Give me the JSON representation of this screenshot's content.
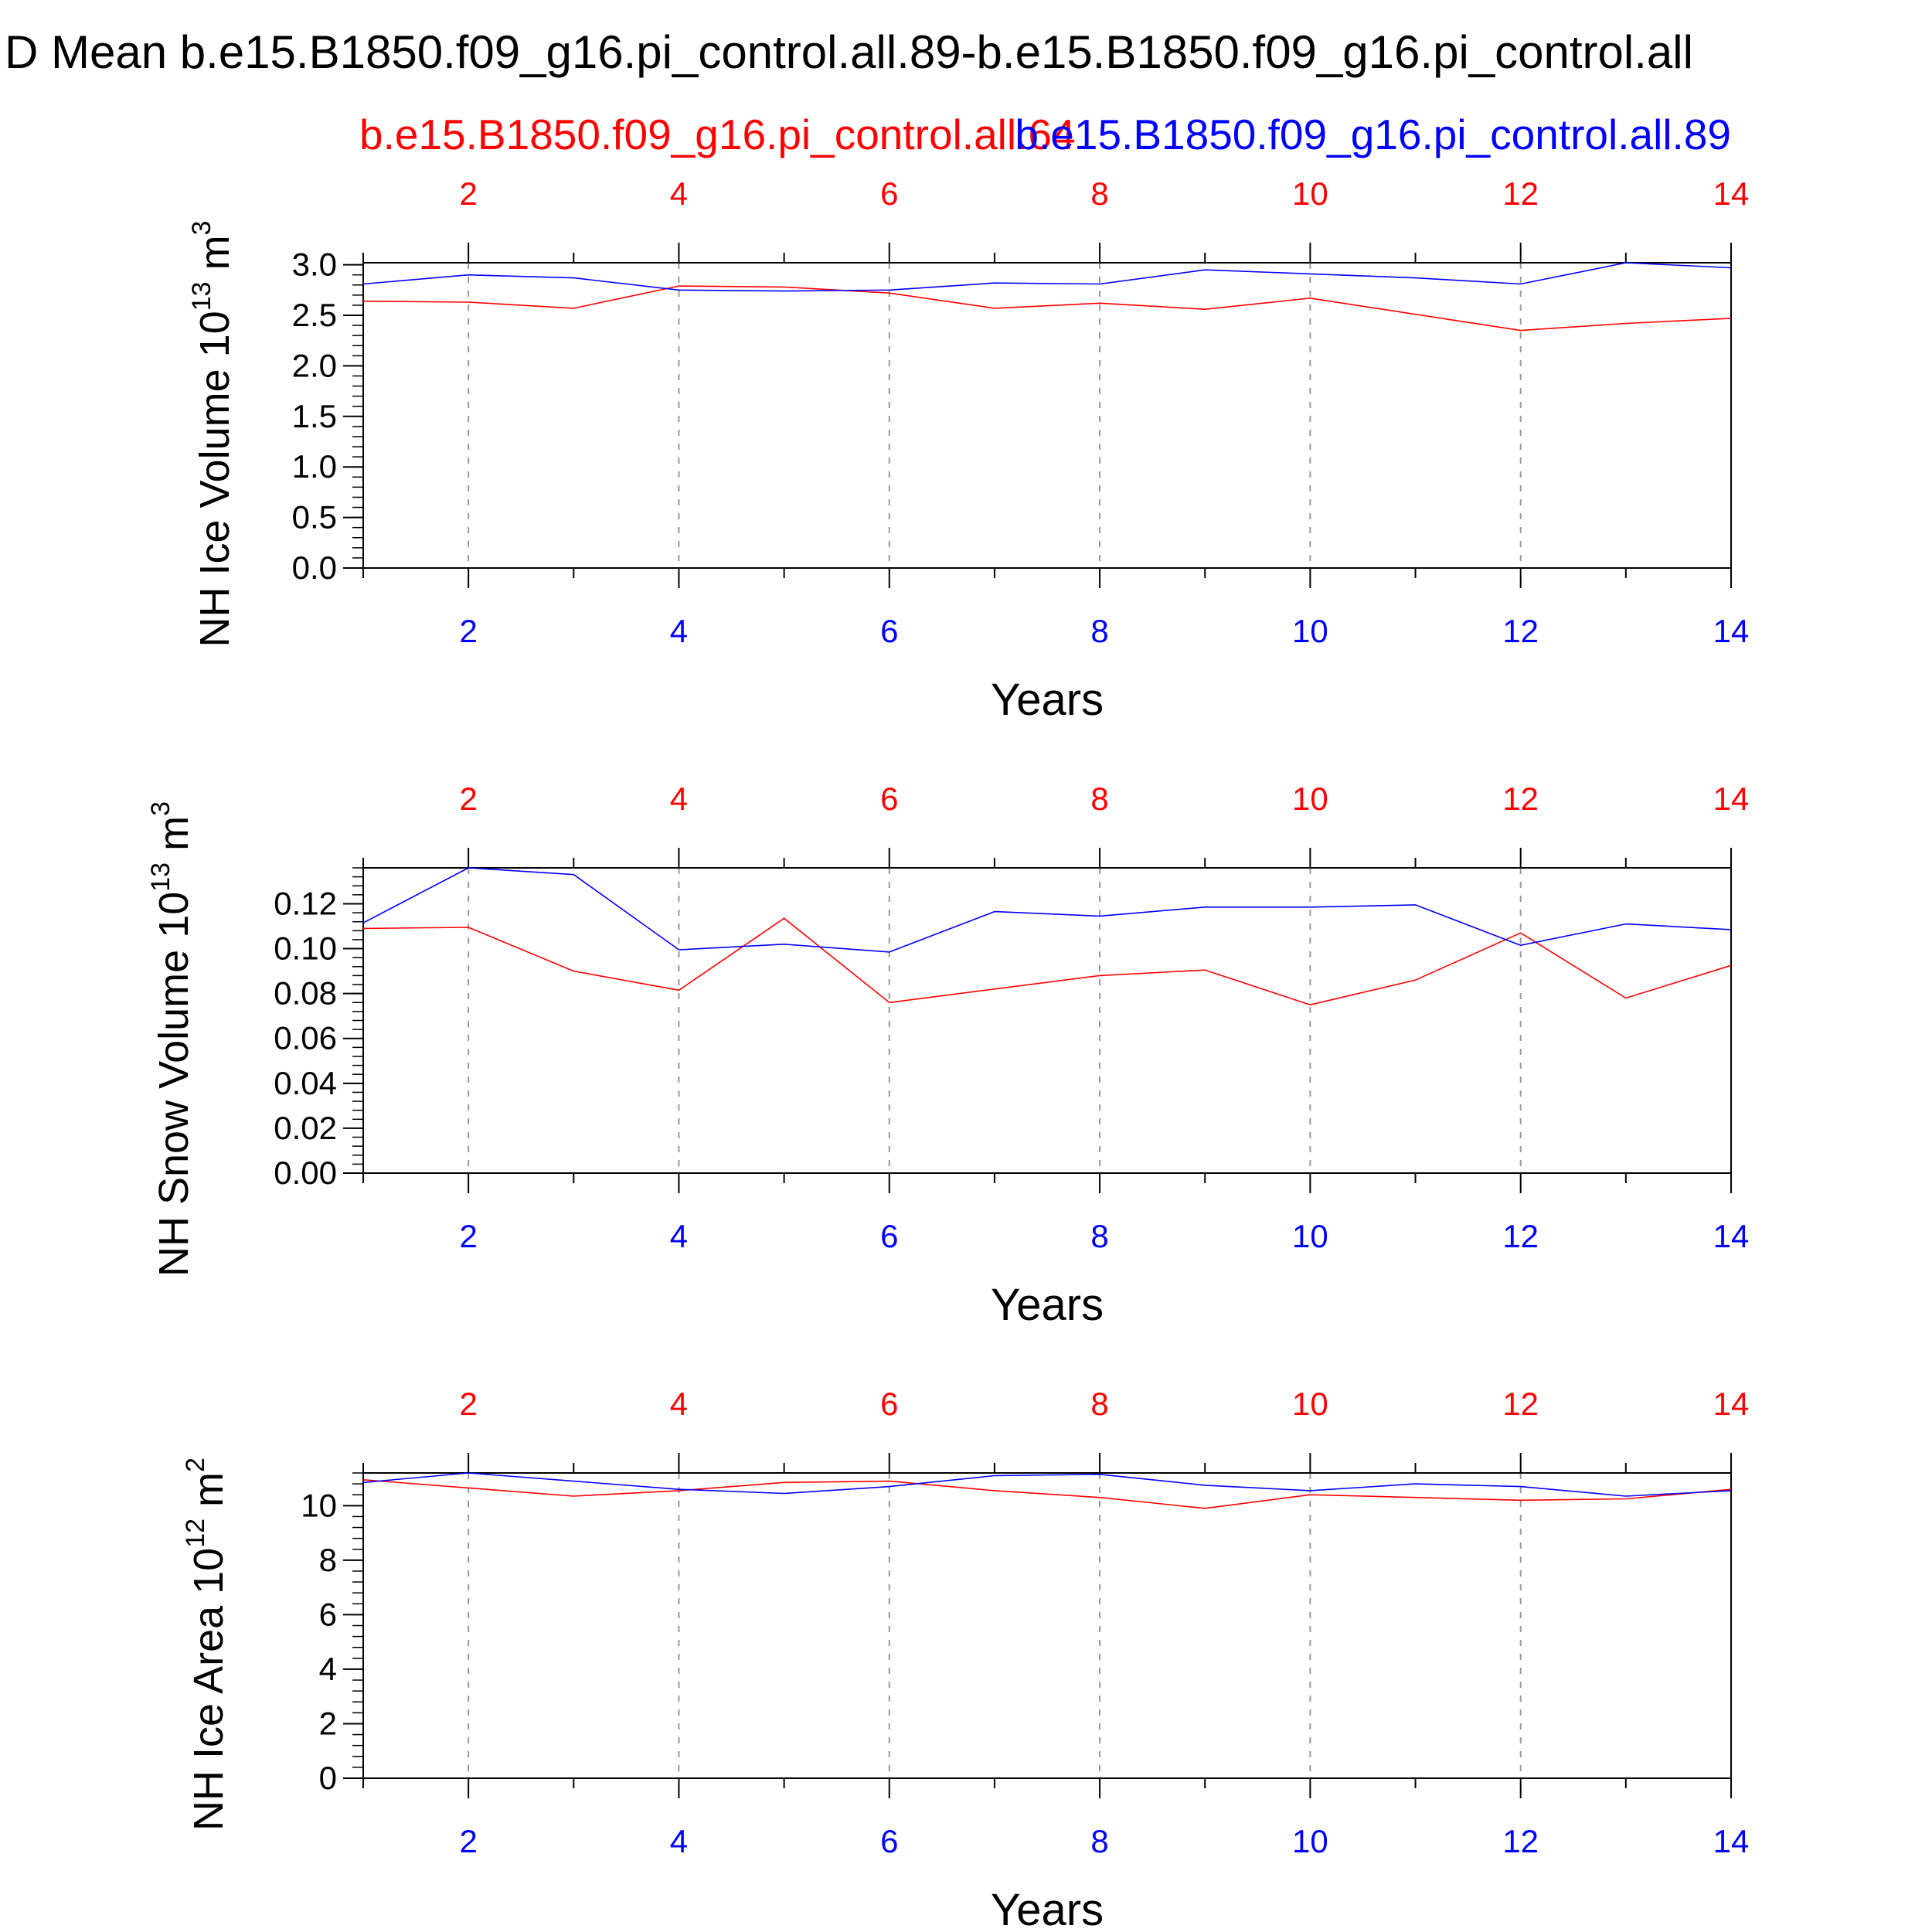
{
  "header": {
    "title": "D Mean b.e15.B1850.f09_g16.pi_control.all.89-b.e15.B1850.f09_g16.pi_control.all",
    "case_red": "b.e15.B1850.f09_g16.pi_control.all.64",
    "case_blue": "b.e15.B1850.f09_g16.pi_control.all.89"
  },
  "colors": {
    "red": "#ff0000",
    "blue": "#0000ff",
    "axis": "#000000",
    "grid": "#999999"
  },
  "chart_data": [
    {
      "type": "line",
      "ylabel_main": "NH Ice Volume 10",
      "ylabel_exp": "13",
      "ylabel_unit": "m",
      "ylabel_unit_exp": "3",
      "xlabel": "Years",
      "xlim": [
        1,
        14
      ],
      "ylim": [
        0,
        3.02
      ],
      "x_ticks": [
        2,
        4,
        6,
        8,
        10,
        12,
        14
      ],
      "x_tick_labels": [
        "2",
        "4",
        "6",
        "8",
        "10",
        "12",
        "14"
      ],
      "y_ticks": [
        0,
        0.5,
        1.0,
        1.5,
        2.0,
        2.5,
        3.0
      ],
      "y_tick_labels": [
        "0.0",
        "0.5",
        "1.0",
        "1.5",
        "2.0",
        "2.5",
        "3.0"
      ],
      "y_minor_step": 0.1,
      "x": [
        1,
        2,
        3,
        4,
        5,
        6,
        7,
        8,
        9,
        10,
        11,
        12,
        13,
        14
      ],
      "series": [
        {
          "color": "#ff0000",
          "values": [
            2.64,
            2.63,
            2.57,
            2.79,
            2.78,
            2.72,
            2.57,
            2.62,
            2.56,
            2.67,
            2.51,
            2.35,
            2.42,
            2.47
          ]
        },
        {
          "color": "#0000ff",
          "values": [
            2.81,
            2.9,
            2.87,
            2.75,
            2.74,
            2.75,
            2.82,
            2.81,
            2.95,
            2.91,
            2.87,
            2.81,
            3.02,
            2.97
          ]
        }
      ]
    },
    {
      "type": "line",
      "ylabel_main": "NH Snow Volume 10",
      "ylabel_exp": "13",
      "ylabel_unit": "m",
      "ylabel_unit_exp": "3",
      "xlabel": "Years",
      "xlim": [
        1,
        14
      ],
      "ylim": [
        0,
        0.136
      ],
      "x_ticks": [
        2,
        4,
        6,
        8,
        10,
        12,
        14
      ],
      "x_tick_labels": [
        "2",
        "4",
        "6",
        "8",
        "10",
        "12",
        "14"
      ],
      "y_ticks": [
        0,
        0.02,
        0.04,
        0.06,
        0.08,
        0.1,
        0.12
      ],
      "y_tick_labels": [
        "0.00",
        "0.02",
        "0.04",
        "0.06",
        "0.08",
        "0.10",
        "0.12"
      ],
      "y_minor_step": 0.004,
      "x": [
        1,
        2,
        3,
        4,
        5,
        6,
        7,
        8,
        9,
        10,
        11,
        12,
        13,
        14
      ],
      "series": [
        {
          "color": "#ff0000",
          "values": [
            0.109,
            0.1095,
            0.09,
            0.0815,
            0.1135,
            0.076,
            0.082,
            0.088,
            0.0905,
            0.075,
            0.086,
            0.107,
            0.078,
            0.0925
          ]
        },
        {
          "color": "#0000ff",
          "values": [
            0.1115,
            0.136,
            0.133,
            0.0995,
            0.102,
            0.0985,
            0.1165,
            0.1145,
            0.1185,
            0.1185,
            0.1195,
            0.1015,
            0.111,
            0.1085
          ]
        }
      ]
    },
    {
      "type": "line",
      "ylabel_main": "NH Ice Area 10",
      "ylabel_exp": "12",
      "ylabel_unit": "m",
      "ylabel_unit_exp": "2",
      "xlabel": "Years",
      "xlim": [
        1,
        14
      ],
      "ylim": [
        0,
        11.2
      ],
      "x_ticks": [
        2,
        4,
        6,
        8,
        10,
        12,
        14
      ],
      "x_tick_labels": [
        "2",
        "4",
        "6",
        "8",
        "10",
        "12",
        "14"
      ],
      "y_ticks": [
        0,
        2,
        4,
        6,
        8,
        10
      ],
      "y_tick_labels": [
        "0",
        "2",
        "4",
        "6",
        "8",
        "10"
      ],
      "y_minor_step": 0.4,
      "x": [
        1,
        2,
        3,
        4,
        5,
        6,
        7,
        8,
        9,
        10,
        11,
        12,
        13,
        14
      ],
      "series": [
        {
          "color": "#ff0000",
          "values": [
            10.95,
            10.65,
            10.35,
            10.55,
            10.85,
            10.9,
            10.55,
            10.3,
            9.9,
            10.4,
            10.3,
            10.2,
            10.25,
            10.6
          ]
        },
        {
          "color": "#0000ff",
          "values": [
            10.85,
            11.2,
            10.9,
            10.6,
            10.45,
            10.7,
            11.1,
            11.15,
            10.75,
            10.55,
            10.8,
            10.7,
            10.35,
            10.55
          ]
        }
      ]
    }
  ]
}
